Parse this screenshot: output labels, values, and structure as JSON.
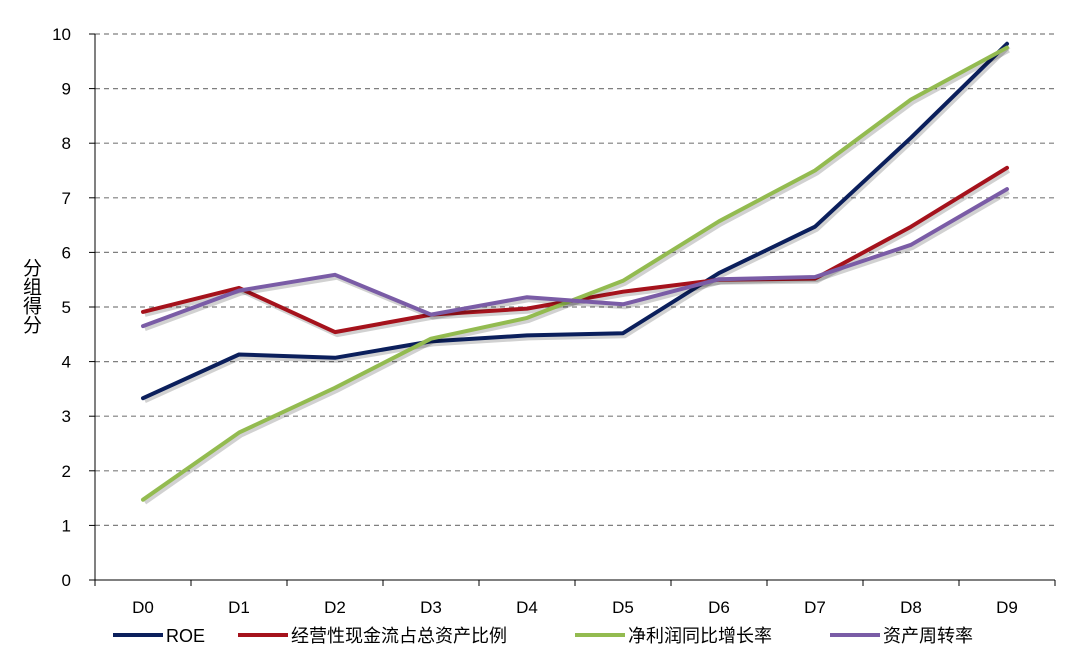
{
  "chart_data": {
    "type": "line",
    "title": "",
    "xlabel": "",
    "ylabel": "分组得分",
    "categories": [
      "D0",
      "D1",
      "D2",
      "D3",
      "D4",
      "D5",
      "D6",
      "D7",
      "D8",
      "D9"
    ],
    "ylim": [
      0,
      10
    ],
    "yticks": [
      "0",
      "1",
      "2",
      "3",
      "4",
      "5",
      "6",
      "7",
      "8",
      "9",
      "10"
    ],
    "grid": "horizontal dashed",
    "legend_position": "bottom",
    "series": [
      {
        "name": "ROE",
        "color": "#0b1f5c",
        "values": [
          3.33,
          4.13,
          4.07,
          4.37,
          4.48,
          4.52,
          5.62,
          6.47,
          8.1,
          9.82
        ]
      },
      {
        "name": "经营性现金流占总资产比例",
        "color": "#a5121c",
        "values": [
          4.91,
          5.35,
          4.54,
          4.86,
          4.97,
          5.28,
          5.5,
          5.52,
          6.47,
          7.55
        ]
      },
      {
        "name": "净利润同比增长率",
        "color": "#93bb50",
        "values": [
          1.47,
          2.7,
          3.52,
          4.42,
          4.8,
          5.48,
          6.57,
          7.5,
          8.8,
          9.75
        ]
      },
      {
        "name": "资产周转率",
        "color": "#7a5ca6",
        "values": [
          4.65,
          5.3,
          5.59,
          4.86,
          5.18,
          5.05,
          5.51,
          5.55,
          6.14,
          7.16
        ]
      }
    ]
  }
}
